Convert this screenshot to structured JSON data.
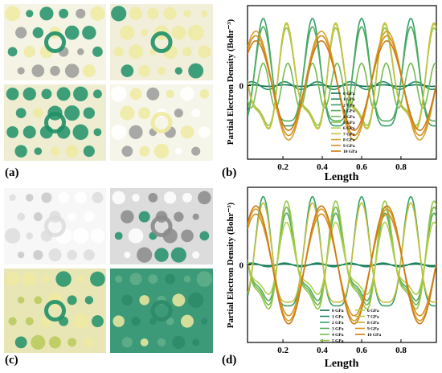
{
  "labels": {
    "a": "(a)",
    "b": "(b)",
    "c": "(c)",
    "d": "(d)"
  },
  "colors": {
    "green": "#1f8f68",
    "yellow": "#eeeaa0",
    "grey": "#9a9a9a",
    "series": [
      "#0f6e55",
      "#1f8a62",
      "#36a069",
      "#52ad5f",
      "#76bb52",
      "#97c84a",
      "#b2ce48",
      "#c7c03e",
      "#d6a22e",
      "#d78f22",
      "#cf7a15"
    ]
  },
  "chart_data": [
    {
      "type": "line",
      "xlabel": "Length",
      "ylabel": "Partial Electron Density (Bohr⁻³)",
      "xlim": [
        0.02,
        0.98
      ],
      "ylim": [
        -1.15,
        1.25
      ],
      "xticks": [
        0.2,
        0.4,
        0.6,
        0.8
      ],
      "xtick_labels": [
        "0.2",
        "0.4",
        "0.6",
        "0.8"
      ],
      "yticks": [
        0
      ],
      "ytick_labels": [
        "0"
      ],
      "legend": "center-right, single column",
      "series": [
        {
          "name": "0 GPa",
          "amp": 0.02,
          "kind": "low"
        },
        {
          "name": "1 GPa",
          "amp": 0.1,
          "kind": "low"
        },
        {
          "name": "2 GPa",
          "amp": 1.05,
          "kind": "peak"
        },
        {
          "name": "3 GPa",
          "amp": 0.92,
          "kind": "peak"
        },
        {
          "name": "4 GPa",
          "amp": 0.5,
          "kind": "mid"
        },
        {
          "name": "5 GPa",
          "amp": 0.92,
          "kind": "trough"
        },
        {
          "name": "6 GPa",
          "amp": 0.98,
          "kind": "trough"
        },
        {
          "name": "7 GPa",
          "amp": 1.0,
          "kind": "trough"
        },
        {
          "name": "8 GPa",
          "amp": 0.85,
          "kind": "orange"
        },
        {
          "name": "9 GPa",
          "amp": 0.78,
          "kind": "orange"
        },
        {
          "name": "10 GPa",
          "amp": 0.7,
          "kind": "orange"
        }
      ]
    },
    {
      "type": "line",
      "xlabel": "Length",
      "ylabel": "Partial Electron Density (Bohr⁻³)",
      "xlim": [
        0.02,
        0.98
      ],
      "ylim": [
        -1.25,
        1.25
      ],
      "xticks": [
        0.2,
        0.4,
        0.6,
        0.8
      ],
      "xtick_labels": [
        "0.2",
        "0.4",
        "0.6",
        "0.8"
      ],
      "yticks": [
        0
      ],
      "ytick_labels": [
        "0"
      ],
      "legend": "bottom-center, two columns",
      "series": [
        {
          "name": "0 GPa",
          "amp": 0.02,
          "kind": "low"
        },
        {
          "name": "1 GPa",
          "amp": 0.05,
          "kind": "low"
        },
        {
          "name": "2 GPa",
          "amp": 1.1,
          "kind": "peak"
        },
        {
          "name": "3 GPa",
          "amp": 0.85,
          "kind": "trough"
        },
        {
          "name": "4 GPa",
          "amp": 0.95,
          "kind": "trough"
        },
        {
          "name": "5 GPa",
          "amp": 1.05,
          "kind": "trough"
        },
        {
          "name": "6 GPa",
          "amp": 0.7,
          "kind": "trough"
        },
        {
          "name": "7 GPa",
          "amp": 1.0,
          "kind": "peak"
        },
        {
          "name": "8 GPa",
          "amp": 0.9,
          "kind": "orange"
        },
        {
          "name": "9 GPa",
          "amp": 0.82,
          "kind": "orange"
        },
        {
          "name": "10 GPa",
          "amp": 0.95,
          "kind": "orange"
        }
      ]
    }
  ]
}
